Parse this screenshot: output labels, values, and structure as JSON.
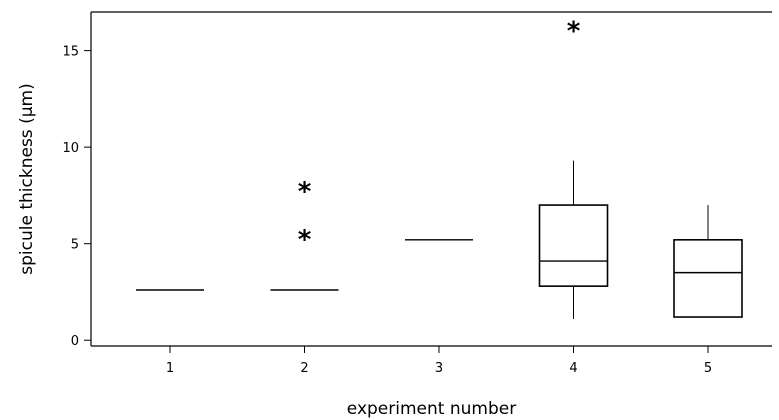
{
  "chart_data": {
    "type": "box",
    "title": "",
    "xlabel": "experiment number",
    "ylabel": "spicule thickness (µm)",
    "categories": [
      "1",
      "2",
      "3",
      "4",
      "5"
    ],
    "ylim": [
      -0.3,
      17
    ],
    "yticks": [
      0,
      5,
      10,
      15
    ],
    "yticklabels": [
      "0",
      "5",
      "10",
      "15"
    ],
    "grid": false,
    "boxes": [
      {
        "category": "1",
        "min": 2.6,
        "q1": 2.6,
        "median": 2.6,
        "q3": 2.6,
        "max": 2.6,
        "outliers": []
      },
      {
        "category": "2",
        "min": 2.6,
        "q1": 2.6,
        "median": 2.6,
        "q3": 2.6,
        "max": 2.6,
        "outliers": [
          5.5,
          8.0
        ]
      },
      {
        "category": "3",
        "min": 5.2,
        "q1": 5.2,
        "median": 5.2,
        "q3": 5.2,
        "max": 5.2,
        "outliers": []
      },
      {
        "category": "4",
        "min": 1.1,
        "q1": 2.8,
        "median": 4.1,
        "q3": 7.0,
        "max": 9.3,
        "outliers": [
          16.3
        ]
      },
      {
        "category": "5",
        "min": 1.2,
        "q1": 1.2,
        "median": 3.5,
        "q3": 5.2,
        "max": 7.0,
        "outliers": []
      }
    ],
    "outlier_marker": "*"
  }
}
